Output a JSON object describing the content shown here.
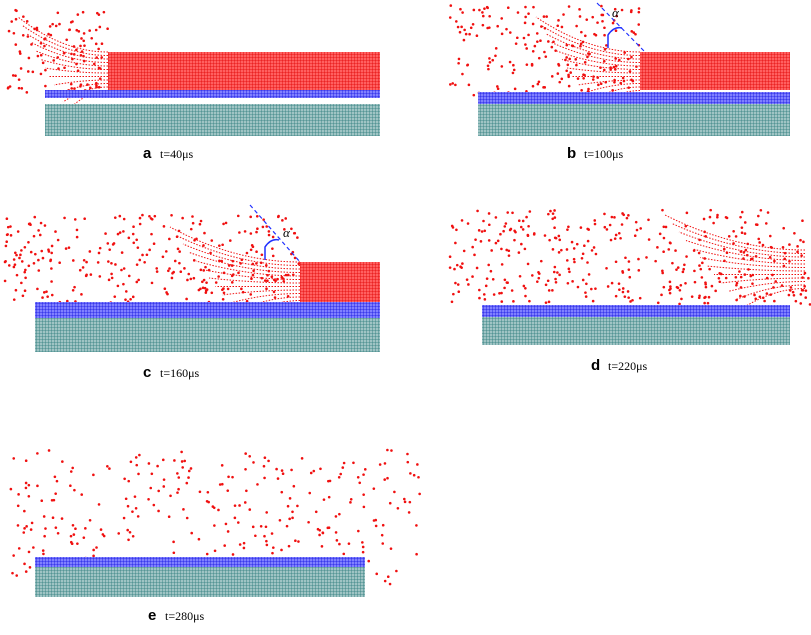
{
  "panels": [
    {
      "letter": "a",
      "time": "t=40μs"
    },
    {
      "letter": "b",
      "time": "t=100μs",
      "angle_label": "α"
    },
    {
      "letter": "c",
      "time": "t=160μs",
      "angle_label": "α"
    },
    {
      "letter": "d",
      "time": "t=220μs"
    },
    {
      "letter": "e",
      "time": "t=280μs"
    }
  ]
}
